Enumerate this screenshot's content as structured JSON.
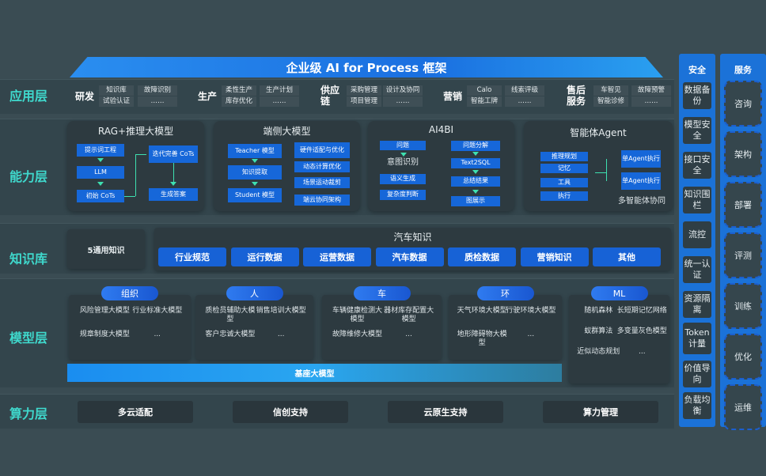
{
  "title": "企业级 AI for Process 框架",
  "layers": {
    "app": "应用层",
    "capability": "能力层",
    "knowledge": "知识库",
    "model": "模型层",
    "compute": "算力层"
  },
  "app": [
    {
      "category": "研发",
      "boxes": [
        [
          "知识库",
          "试验认证"
        ],
        [
          "故障识别",
          "……"
        ]
      ]
    },
    {
      "category": "生产",
      "boxes": [
        [
          "柔性生产",
          "库存优化"
        ],
        [
          "生产计划",
          "……"
        ]
      ]
    },
    {
      "category": "供应链",
      "boxes": [
        [
          "采购管理",
          "项目管理"
        ],
        [
          "设计及协同",
          "……"
        ]
      ]
    },
    {
      "category": "营销",
      "boxes": [
        [
          "Calo",
          "智能工牌"
        ],
        [
          "线索评级",
          "……"
        ]
      ]
    },
    {
      "category": "售后服务",
      "boxes": [
        [
          "车智见",
          "智能诊修"
        ],
        [
          "故障预警",
          "……"
        ]
      ]
    }
  ],
  "capability": {
    "rag": {
      "title": "RAG+推理大模型",
      "items": [
        "提示词工程",
        "LLM",
        "初始 CoTs",
        "迭代完善 CoTs",
        "生成答案"
      ]
    },
    "edge": {
      "title": "端侧大模型",
      "items": [
        "Teacher 模型",
        "知识提取",
        "Student 模型",
        "硬件适配与优化",
        "动态计算优化",
        "场景运动裁剪",
        "端云协同架构"
      ]
    },
    "ai4bi": {
      "title": "AI4BI",
      "items": [
        "问题",
        "意图识别",
        "语义生成",
        "复杂度判断",
        "问题分解",
        "Text2SQL",
        "总结结果",
        "图展示"
      ]
    },
    "agent": {
      "title": "智能体Agent",
      "items": [
        "推理规划",
        "记忆",
        "工具",
        "执行",
        "单Agent执行",
        "单Agent执行"
      ],
      "footer": "多智能体协同"
    }
  },
  "knowledge": {
    "general": "5通用知识",
    "auto_title": "汽车知识",
    "items": [
      "行业规范",
      "运行数据",
      "运营数据",
      "汽车数据",
      "质检数据",
      "营销知识",
      "其他"
    ]
  },
  "model": {
    "groups": [
      {
        "name": "组织",
        "items": [
          "风险管理大模型",
          "行业标准大模型",
          "规章制度大模型",
          "..."
        ]
      },
      {
        "name": "人",
        "items": [
          "质检员辅助大模型",
          "销售培训大模型",
          "客户忠诚大模型",
          "..."
        ]
      },
      {
        "name": "车",
        "items": [
          "车辆健康检测大模型",
          "器材库存配置大模型",
          "故障维修大模型",
          "..."
        ]
      },
      {
        "name": "环",
        "items": [
          "天气环境大模型",
          "行驶环境大模型",
          "地形障碍物大模型",
          "..."
        ]
      },
      {
        "name": "ML",
        "items": [
          "随机森林",
          "长短期记忆网络",
          "蚁群算法",
          "多变量灰色模型",
          "近似动态规划",
          "..."
        ]
      }
    ],
    "base": "基座大模型"
  },
  "compute": [
    "多云适配",
    "信创支持",
    "云原生支持",
    "算力管理"
  ],
  "security": {
    "title": "安全",
    "items": [
      "数据备份",
      "模型安全",
      "接口安全",
      "知识围栏",
      "流控",
      "统一认证",
      "资源隔离",
      "Token计量",
      "价值导向",
      "负载均衡"
    ]
  },
  "service": {
    "title": "服务",
    "items": [
      "咨询",
      "架构",
      "部署",
      "评测",
      "训练",
      "优化",
      "运维"
    ]
  }
}
